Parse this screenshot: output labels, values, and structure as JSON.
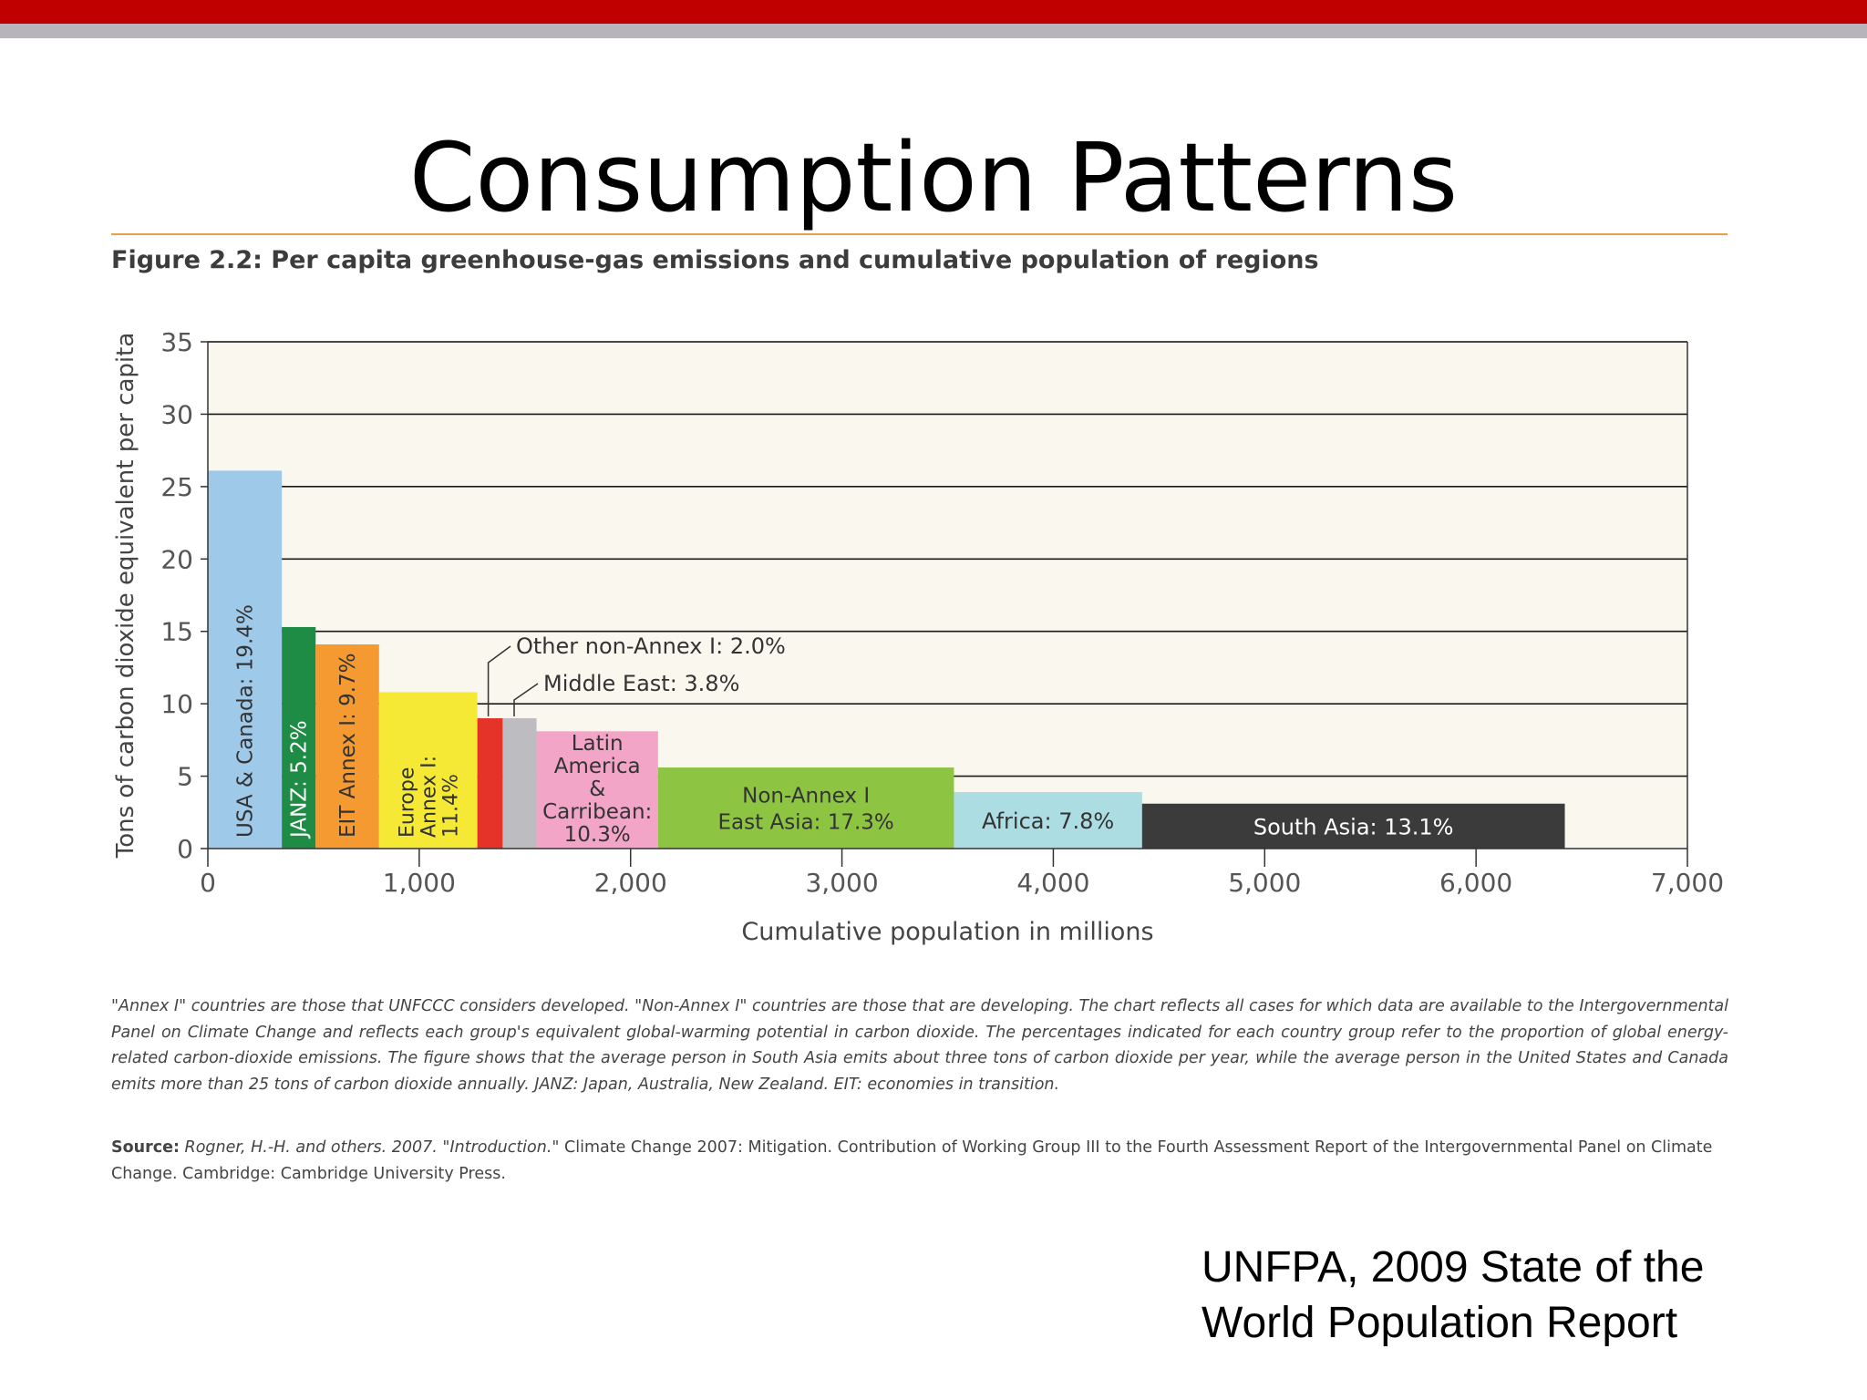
{
  "slide": {
    "title": "Consumption Patterns",
    "credit": "UNFPA, 2009 State of the World Population Report"
  },
  "figure": {
    "caption": "Figure 2.2: Per capita greenhouse-gas emissions and cumulative population of regions",
    "notes": "\"Annex I\" countries are those that UNFCCC considers developed. \"Non-Annex I\" countries are those that are developing. The chart reflects all cases for which data are available to the Intergovernmental Panel on Climate Change and reflects each group's equivalent global-warming potential in carbon dioxide. The percentages indicated for each country group refer to the proportion of global energy-related carbon-dioxide emissions. The figure shows that the average person in South Asia emits about three tons of carbon dioxide per year, while the average person in the United States and Canada emits more than 25 tons of carbon dioxide annually. JANZ: Japan, Australia, New Zealand. EIT: economies in transition.",
    "source_label": "Source:",
    "source_authors": "Rogner, H.-H. and others. 2007. \"Introduction.\"",
    "source_text": "Climate Change 2007: Mitigation. Contribution of Working Group III to the Fourth Assessment Report of the Intergovernmental Panel on Climate Change. Cambridge: Cambridge University Press."
  },
  "chart_data": {
    "type": "bar",
    "xlabel": "Cumulative population in millions",
    "ylabel": "Tons of carbon dioxide equivalent per capita",
    "xlim": [
      0,
      7000
    ],
    "ylim": [
      0,
      35
    ],
    "xticks": [
      "0",
      "1,000",
      "2,000",
      "3,000",
      "4,000",
      "5,000",
      "6,000",
      "7,000"
    ],
    "xtick_values": [
      0,
      1000,
      2000,
      3000,
      4000,
      5000,
      6000,
      7000
    ],
    "yticks": [
      "0",
      "5",
      "10",
      "15",
      "20",
      "25",
      "30",
      "35"
    ],
    "ytick_values": [
      0,
      5,
      10,
      15,
      20,
      25,
      30,
      35
    ],
    "grid": "horizontal",
    "plot_background": "#faf7ee",
    "bars": [
      {
        "label": "USA & Canada: 19.4%",
        "x_start": 0,
        "x_end": 350,
        "value": 26.1,
        "color": "#9ec9e9",
        "label_style": "rot"
      },
      {
        "label": "JANZ: 5.2%",
        "x_start": 350,
        "x_end": 510,
        "value": 15.3,
        "color": "#1f8c45",
        "label_style": "rot"
      },
      {
        "label": "EIT Annex I: 9.7%",
        "x_start": 510,
        "x_end": 810,
        "value": 14.1,
        "color": "#f59a30",
        "label_style": "rot"
      },
      {
        "label": "Europe Annex I: 11.4%",
        "lines": [
          "Europe",
          "Annex I:",
          "11.4%"
        ],
        "x_start": 810,
        "x_end": 1275,
        "value": 10.8,
        "color": "#f5e936",
        "label_style": "rot-multi"
      },
      {
        "label": "Other non-Annex I: 2.0%",
        "x_start": 1275,
        "x_end": 1395,
        "value": 9.0,
        "color": "#e63329",
        "label_style": "callout"
      },
      {
        "label": "Middle East: 3.8%",
        "x_start": 1395,
        "x_end": 1555,
        "value": 9.0,
        "color": "#bdbcc1",
        "label_style": "callout"
      },
      {
        "label": "Latin America & Carribean: 10.3%",
        "lines": [
          "Latin",
          "America",
          "&",
          "Carribean:",
          "10.3%"
        ],
        "x_start": 1555,
        "x_end": 2130,
        "value": 8.1,
        "color": "#f3a5c7",
        "label_style": "multi"
      },
      {
        "label": "Non-Annex I East Asia: 17.3%",
        "lines": [
          "Non-Annex I",
          "East Asia: 17.3%"
        ],
        "x_start": 2130,
        "x_end": 3530,
        "value": 5.6,
        "color": "#8dc543",
        "label_style": "multi"
      },
      {
        "label": "Africa: 7.8%",
        "x_start": 3530,
        "x_end": 4420,
        "value": 3.9,
        "color": "#acdde3",
        "label_style": "center"
      },
      {
        "label": "South Asia: 13.1%",
        "x_start": 4420,
        "x_end": 6420,
        "value": 3.1,
        "color": "#3b3b3b",
        "label_style": "center-white"
      }
    ]
  },
  "colors": {
    "top_bar": "#c00000",
    "top_bar_secondary": "#b7b5bb",
    "rule": "#e8a045"
  }
}
